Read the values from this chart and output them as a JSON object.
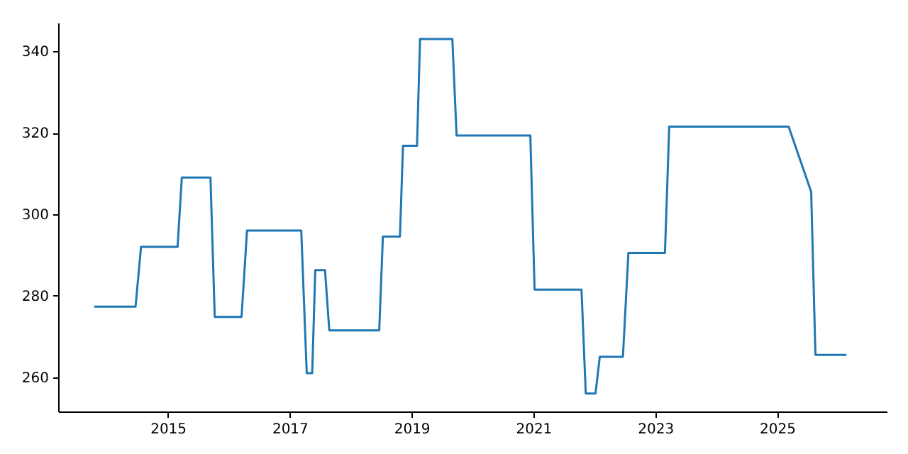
{
  "chart_data": {
    "type": "line",
    "x": [
      2013.79,
      2014.47,
      2014.56,
      2015.16,
      2015.23,
      2015.7,
      2015.77,
      2016.21,
      2016.3,
      2017.19,
      2017.28,
      2017.37,
      2017.42,
      2017.58,
      2017.65,
      2018.47,
      2018.53,
      2018.81,
      2018.86,
      2019.09,
      2019.14,
      2019.67,
      2019.74,
      2020.95,
      2021.02,
      2021.79,
      2021.86,
      2022.02,
      2022.09,
      2022.47,
      2022.56,
      2023.16,
      2023.23,
      2025.19,
      2025.56,
      2025.63,
      2026.14
    ],
    "series": [
      {
        "color": "#1f77b4",
        "values": [
          277.3,
          277.3,
          292,
          292,
          309,
          309,
          274.8,
          274.8,
          296,
          296,
          261,
          261,
          286.3,
          286.3,
          271.5,
          271.5,
          294.5,
          294.5,
          316.8,
          316.8,
          343,
          343,
          319.3,
          319.3,
          281.5,
          281.5,
          256,
          256,
          265,
          265,
          290.5,
          290.5,
          321.5,
          321.5,
          305.5,
          265.5,
          265.5
        ]
      }
    ],
    "xlim": [
      2013.2,
      2026.8
    ],
    "ylim": [
      251.6,
      347
    ],
    "xticks": [
      2015,
      2017,
      2019,
      2021,
      2023,
      2025
    ],
    "yticks": [
      260,
      280,
      300,
      320,
      340
    ],
    "grid": false,
    "marker": "none",
    "line_style": "solid"
  }
}
